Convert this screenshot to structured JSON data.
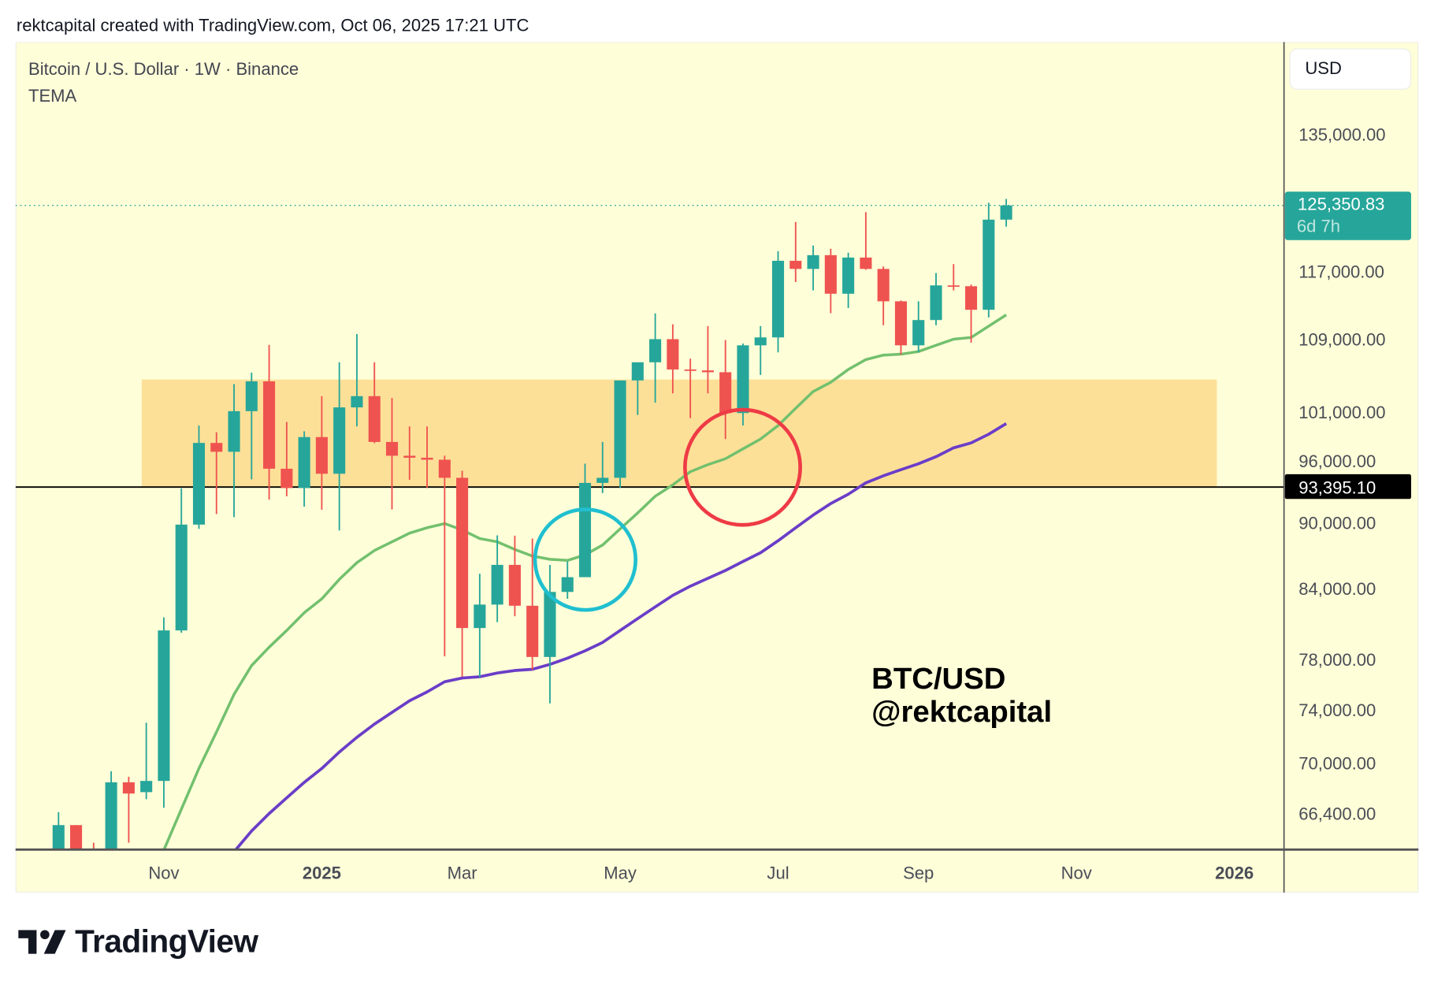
{
  "header": {
    "text": "rektcapital created with TradingView.com, Oct 06, 2025 17:21 UTC"
  },
  "legend": {
    "symbol": "Bitcoin / U.S. Dollar · 1W · Binance",
    "indicator": "TEMA"
  },
  "currency_button": "USD",
  "watermark": {
    "line1": "BTC/USD",
    "line2": "@rektcapital"
  },
  "footer": {
    "brand": "TradingView"
  },
  "colors": {
    "background": "#fefed8",
    "up": "#26a69a",
    "down": "#ef5350",
    "zone": "#fde098",
    "tema_fast": "#72c06e",
    "tema_slow": "#6a3dc8",
    "circle_blue": "#1fbfd0",
    "circle_red": "#ee3b45"
  },
  "chart_data": {
    "type": "candlestick",
    "title": "Bitcoin / U.S. Dollar · 1W · Binance",
    "y_scale": "log",
    "ylim": [
      63900,
      141000
    ],
    "grid": false,
    "price_ticks": [
      {
        "label": "135,000.00",
        "value": 135000
      },
      {
        "label": "117,000.00",
        "value": 117000
      },
      {
        "label": "109,000.00",
        "value": 109000
      },
      {
        "label": "101,000.00",
        "value": 101000
      },
      {
        "label": "96,000.00",
        "value": 96000
      },
      {
        "label": "90,000.00",
        "value": 90000
      },
      {
        "label": "84,000.00",
        "value": 84000
      },
      {
        "label": "78,000.00",
        "value": 78000
      },
      {
        "label": "74,000.00",
        "value": 74000
      },
      {
        "label": "70,000.00",
        "value": 70000
      },
      {
        "label": "66,400.00",
        "value": 66400
      }
    ],
    "time_ticks": [
      {
        "label": "Nov",
        "date": "2024-11-04",
        "bold": false
      },
      {
        "label": "2025",
        "date": "2025-01-06",
        "bold": true
      },
      {
        "label": "Mar",
        "date": "2025-03-03",
        "bold": false
      },
      {
        "label": "May",
        "date": "2025-05-05",
        "bold": false
      },
      {
        "label": "Jul",
        "date": "2025-07-07",
        "bold": false
      },
      {
        "label": "Sep",
        "date": "2025-09-01",
        "bold": false
      },
      {
        "label": "Nov",
        "date": "2025-11-03",
        "bold": false
      },
      {
        "label": "2026",
        "date": "2026-01-05",
        "bold": true
      }
    ],
    "last_price": {
      "label": "125,350.83",
      "countdown": "6d 7h",
      "value": 125350.83
    },
    "support_line": {
      "label": "93,395.10",
      "value": 93395.1
    },
    "zone": {
      "from": 93395.1,
      "to": 104500,
      "start": "2024-10-28",
      "end": "2025-12-29"
    },
    "first_week": "2024-09-23",
    "candles": [
      {
        "date": "2024-09-23",
        "o": 63300,
        "h": 66500,
        "l": 62700,
        "c": 65600
      },
      {
        "date": "2024-09-30",
        "o": 65600,
        "h": 65600,
        "l": 59800,
        "c": 62800
      },
      {
        "date": "2024-10-07",
        "o": 62800,
        "h": 64400,
        "l": 58900,
        "c": 62500
      },
      {
        "date": "2024-10-14",
        "o": 62500,
        "h": 69400,
        "l": 62000,
        "c": 68600
      },
      {
        "date": "2024-10-21",
        "o": 68600,
        "h": 69000,
        "l": 64400,
        "c": 67800
      },
      {
        "date": "2024-10-28",
        "o": 67900,
        "h": 73000,
        "l": 67400,
        "c": 68700
      },
      {
        "date": "2024-11-04",
        "o": 68700,
        "h": 81500,
        "l": 66800,
        "c": 80400
      },
      {
        "date": "2024-11-11",
        "o": 80400,
        "h": 93265,
        "l": 80200,
        "c": 89800
      },
      {
        "date": "2024-11-18",
        "o": 89800,
        "h": 99588,
        "l": 89400,
        "c": 97800
      },
      {
        "date": "2024-11-25",
        "o": 97800,
        "h": 98900,
        "l": 90800,
        "c": 96900
      },
      {
        "date": "2024-12-02",
        "o": 96900,
        "h": 104000,
        "l": 90500,
        "c": 101100
      },
      {
        "date": "2024-12-09",
        "o": 101100,
        "h": 105250,
        "l": 94150,
        "c": 104300
      },
      {
        "date": "2024-12-16",
        "o": 104300,
        "h": 108353,
        "l": 92175,
        "c": 95200
      },
      {
        "date": "2024-12-23",
        "o": 95200,
        "h": 99960,
        "l": 92500,
        "c": 93300
      },
      {
        "date": "2024-12-30",
        "o": 93300,
        "h": 99000,
        "l": 91500,
        "c": 98400
      },
      {
        "date": "2025-01-06",
        "o": 98400,
        "h": 102700,
        "l": 91200,
        "c": 94700
      },
      {
        "date": "2025-01-13",
        "o": 94700,
        "h": 106400,
        "l": 89256,
        "c": 101500
      },
      {
        "date": "2025-01-20",
        "o": 101500,
        "h": 109588,
        "l": 99500,
        "c": 102700
      },
      {
        "date": "2025-01-27",
        "o": 102700,
        "h": 106400,
        "l": 97777,
        "c": 97900
      },
      {
        "date": "2025-02-03",
        "o": 97900,
        "h": 102500,
        "l": 91231,
        "c": 96500
      },
      {
        "date": "2025-02-10",
        "o": 96500,
        "h": 99500,
        "l": 94100,
        "c": 96300
      },
      {
        "date": "2025-02-17",
        "o": 96300,
        "h": 99500,
        "l": 93300,
        "c": 96100
      },
      {
        "date": "2025-02-24",
        "o": 96100,
        "h": 96500,
        "l": 78258,
        "c": 94300
      },
      {
        "date": "2025-03-03",
        "o": 94300,
        "h": 95000,
        "l": 76600,
        "c": 80600
      },
      {
        "date": "2025-03-10",
        "o": 80600,
        "h": 85300,
        "l": 76555,
        "c": 82600
      },
      {
        "date": "2025-03-17",
        "o": 82600,
        "h": 88800,
        "l": 81100,
        "c": 86100
      },
      {
        "date": "2025-03-24",
        "o": 86100,
        "h": 88765,
        "l": 81600,
        "c": 82500
      },
      {
        "date": "2025-03-31",
        "o": 82500,
        "h": 88500,
        "l": 77150,
        "c": 78200
      },
      {
        "date": "2025-04-07",
        "o": 78200,
        "h": 86100,
        "l": 74500,
        "c": 83700
      },
      {
        "date": "2025-04-14",
        "o": 83700,
        "h": 86400,
        "l": 83100,
        "c": 85000
      },
      {
        "date": "2025-04-21",
        "o": 85000,
        "h": 95700,
        "l": 85100,
        "c": 93800
      },
      {
        "date": "2025-04-28",
        "o": 93800,
        "h": 97900,
        "l": 92800,
        "c": 94300
      },
      {
        "date": "2025-05-05",
        "o": 94300,
        "h": 104300,
        "l": 93300,
        "c": 104400
      },
      {
        "date": "2025-05-12",
        "o": 104400,
        "h": 105800,
        "l": 100700,
        "c": 106400
      },
      {
        "date": "2025-05-19",
        "o": 106400,
        "h": 111980,
        "l": 102000,
        "c": 109000
      },
      {
        "date": "2025-05-26",
        "o": 109000,
        "h": 110700,
        "l": 103000,
        "c": 105600
      },
      {
        "date": "2025-06-02",
        "o": 105600,
        "h": 106800,
        "l": 100372,
        "c": 105500
      },
      {
        "date": "2025-06-09",
        "o": 105500,
        "h": 110500,
        "l": 103000,
        "c": 105300
      },
      {
        "date": "2025-06-16",
        "o": 105300,
        "h": 108900,
        "l": 98200,
        "c": 100900
      },
      {
        "date": "2025-06-23",
        "o": 100900,
        "h": 108500,
        "l": 99600,
        "c": 108300
      },
      {
        "date": "2025-06-30",
        "o": 108300,
        "h": 110500,
        "l": 105000,
        "c": 109200
      },
      {
        "date": "2025-07-07",
        "o": 109200,
        "h": 119500,
        "l": 107500,
        "c": 118300
      },
      {
        "date": "2025-07-14",
        "o": 118300,
        "h": 123200,
        "l": 115700,
        "c": 117300
      },
      {
        "date": "2025-07-21",
        "o": 117300,
        "h": 120200,
        "l": 114700,
        "c": 119000
      },
      {
        "date": "2025-07-28",
        "o": 119000,
        "h": 119800,
        "l": 112000,
        "c": 114300
      },
      {
        "date": "2025-08-04",
        "o": 114300,
        "h": 119300,
        "l": 112600,
        "c": 118700
      },
      {
        "date": "2025-08-11",
        "o": 118700,
        "h": 124474,
        "l": 117200,
        "c": 117300
      },
      {
        "date": "2025-08-18",
        "o": 117300,
        "h": 117600,
        "l": 110600,
        "c": 113400
      },
      {
        "date": "2025-08-25",
        "o": 113400,
        "h": 113500,
        "l": 107255,
        "c": 108300
      },
      {
        "date": "2025-09-01",
        "o": 108300,
        "h": 113400,
        "l": 107500,
        "c": 111200
      },
      {
        "date": "2025-09-08",
        "o": 111200,
        "h": 116800,
        "l": 110600,
        "c": 115300
      },
      {
        "date": "2025-09-15",
        "o": 115300,
        "h": 117900,
        "l": 114700,
        "c": 115200
      },
      {
        "date": "2025-09-22",
        "o": 115200,
        "h": 115400,
        "l": 108600,
        "c": 112400
      },
      {
        "date": "2025-09-29",
        "o": 112400,
        "h": 125700,
        "l": 111500,
        "c": 123500
      },
      {
        "date": "2025-10-06",
        "o": 123500,
        "h": 126200,
        "l": 122600,
        "c": 125350.83
      }
    ],
    "series": [
      {
        "start": "2024-11-04",
        "values": [
          63900,
          66700,
          69600,
          72300,
          75200,
          77500,
          79000,
          80400,
          81900,
          83100,
          84800,
          86300,
          87400,
          88200,
          89000,
          89500,
          89900,
          89300,
          88500,
          88200,
          87500,
          86900,
          86600,
          86500,
          87000,
          87900,
          89400,
          90900,
          92500,
          93600,
          94900,
          95600,
          96200,
          97200,
          98200,
          99600,
          101400,
          103200,
          104200,
          105600,
          106700,
          107200,
          107300,
          107600,
          108300,
          109000,
          109200,
          110500,
          111800
        ]
      },
      {
        "start": "2024-12-02",
        "values": [
          63800,
          65200,
          66400,
          67500,
          68600,
          69600,
          70800,
          71900,
          72900,
          73800,
          74700,
          75400,
          76200,
          76500,
          76600,
          76900,
          77100,
          77200,
          77600,
          78100,
          78700,
          79400,
          80400,
          81400,
          82400,
          83400,
          84200,
          84900,
          85600,
          86400,
          87200,
          88300,
          89500,
          90700,
          91800,
          92700,
          93800,
          94500,
          95100,
          95700,
          96400,
          97300,
          97800,
          98700,
          99800
        ]
      }
    ]
  }
}
